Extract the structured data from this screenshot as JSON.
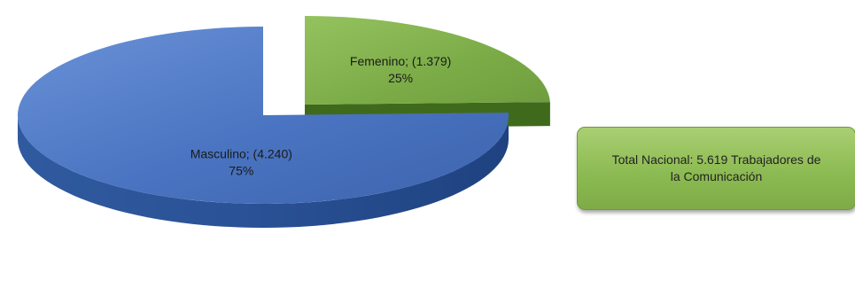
{
  "chart_data": {
    "type": "pie",
    "style": "3d-exploded",
    "slices": [
      {
        "label": "Masculino",
        "value": 4240,
        "value_text": "(4.240)",
        "percent_text": "75%",
        "color": "#4a74c1",
        "side_color": "#284f96",
        "exploded": false
      },
      {
        "label": "Femenino",
        "value": 1379,
        "value_text": "(1.379)",
        "percent_text": "25%",
        "color": "#7bab47",
        "side_color": "#4f7a28",
        "exploded": true
      }
    ],
    "annotation": "Total Nacional: 5.619 Trabajadores de la Comunicación"
  }
}
